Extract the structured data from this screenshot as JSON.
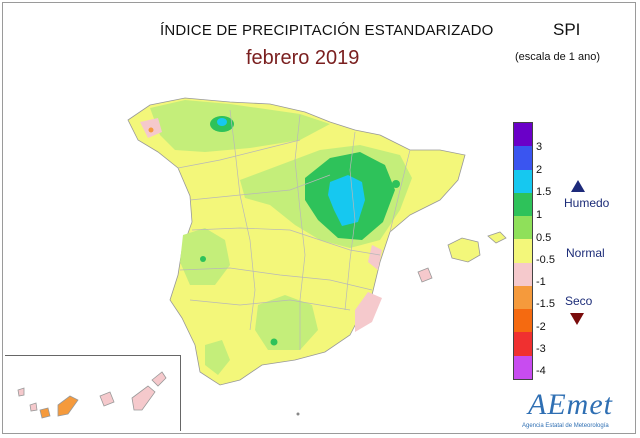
{
  "header": {
    "title": "ÍNDICE DE PRECIPITACIÓN ESTANDARIZADO",
    "subtitle": "febrero 2019",
    "index_name": "SPI",
    "scale_note": "(escala de 1 ano)"
  },
  "legend": {
    "ticks": [
      "3",
      "2",
      "1.5",
      "1",
      "0.5",
      "-0.5",
      "-1",
      "-1.5",
      "-2",
      "-3",
      "-4"
    ],
    "colors": [
      "#6a00c8",
      "#3a55f0",
      "#16c8f0",
      "#2ec25a",
      "#8fe05a",
      "#f3f77a",
      "#f5c9cc",
      "#f59a3c",
      "#f56a10",
      "#f03030",
      "#c84cf0"
    ],
    "labels": {
      "wet": "Humedo",
      "normal": "Normal",
      "dry": "Seco"
    }
  },
  "map_colors": {
    "normal": "#f3f77a",
    "light_green": "#c4ee7a",
    "green": "#2ec25a",
    "cyan": "#16c8f0",
    "pink": "#f5c9cc",
    "orange": "#f59a3c",
    "borders": "#b8b8b8"
  },
  "logo": {
    "name": "AEmet",
    "caption": "Agencia Estatal de Meteorología"
  }
}
